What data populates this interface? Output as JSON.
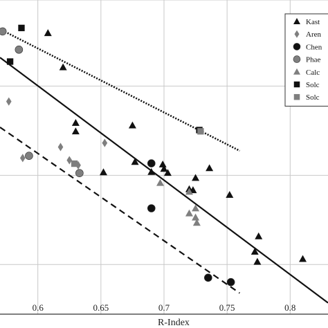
{
  "chart_data": {
    "type": "scatter",
    "xlabel": "R-Index",
    "ylabel": "",
    "xlim": [
      0.57,
      0.83
    ],
    "ylim": [
      0,
      1
    ],
    "x_ticks": [
      0.6,
      0.65,
      0.7,
      0.75,
      0.8
    ],
    "x_tick_labels": [
      "0.6",
      "0.65",
      "0.7",
      "0.75",
      "0.8"
    ],
    "y_gridlines": [
      0.158,
      0.442,
      0.726,
      1.0
    ],
    "grid": true,
    "legend_position": "top-right",
    "colors": {
      "black": "#111111",
      "gray": "#7f7f7f",
      "grid": "#c8c8c8"
    },
    "series": [
      {
        "name": "Kast",
        "marker": "triangle",
        "color": "#111111",
        "points": [
          [
            0.608,
            0.895
          ],
          [
            0.62,
            0.786
          ],
          [
            0.63,
            0.609
          ],
          [
            0.63,
            0.582
          ],
          [
            0.652,
            0.452
          ],
          [
            0.675,
            0.601
          ],
          [
            0.677,
            0.485
          ],
          [
            0.699,
            0.477
          ],
          [
            0.7,
            0.463
          ],
          [
            0.703,
            0.45
          ],
          [
            0.69,
            0.453
          ],
          [
            0.72,
            0.398
          ],
          [
            0.723,
            0.395
          ],
          [
            0.725,
            0.434
          ],
          [
            0.736,
            0.465
          ],
          [
            0.752,
            0.38
          ],
          [
            0.772,
            0.199
          ],
          [
            0.775,
            0.248
          ],
          [
            0.774,
            0.167
          ],
          [
            0.81,
            0.176
          ]
        ]
      },
      {
        "name": "Aren",
        "marker": "diamond",
        "color": "#7f7f7f",
        "points": [
          [
            0.577,
            0.677
          ],
          [
            0.588,
            0.497
          ],
          [
            0.618,
            0.532
          ],
          [
            0.625,
            0.49
          ],
          [
            0.632,
            0.474
          ],
          [
            0.653,
            0.545
          ]
        ]
      },
      {
        "name": "Chen",
        "marker": "circle",
        "color": "#111111",
        "points": [
          [
            0.69,
            0.48
          ],
          [
            0.69,
            0.337
          ],
          [
            0.735,
            0.116
          ],
          [
            0.753,
            0.102
          ]
        ]
      },
      {
        "name": "Phae",
        "marker": "circle",
        "color": "#7f7f7f",
        "points": [
          [
            0.572,
            0.9
          ],
          [
            0.585,
            0.842
          ],
          [
            0.593,
            0.504
          ],
          [
            0.633,
            0.449
          ]
        ]
      },
      {
        "name": "Calc",
        "marker": "triangle",
        "color": "#7f7f7f",
        "points": [
          [
            0.697,
            0.418
          ],
          [
            0.72,
            0.39
          ],
          [
            0.72,
            0.321
          ],
          [
            0.725,
            0.337
          ],
          [
            0.725,
            0.308
          ],
          [
            0.726,
            0.291
          ]
        ]
      },
      {
        "name": "Solc",
        "marker": "square",
        "color": "#111111",
        "points": [
          [
            0.578,
            0.804
          ],
          [
            0.587,
            0.911
          ],
          [
            0.728,
            0.586
          ]
        ]
      },
      {
        "name": "Solc",
        "marker": "square",
        "color": "#7f7f7f",
        "points": [
          [
            0.629,
            0.479
          ],
          [
            0.729,
            0.582
          ]
        ]
      }
    ],
    "fit_lines": [
      {
        "style": "dotted",
        "x": [
          0.57,
          0.76
        ],
        "y": [
          0.907,
          0.52
        ]
      },
      {
        "style": "solid",
        "x": [
          0.57,
          0.83
        ],
        "y": [
          0.817,
          0.036
        ]
      },
      {
        "style": "dashed",
        "x": [
          0.57,
          0.76
        ],
        "y": [
          0.595,
          0.067
        ]
      }
    ]
  }
}
